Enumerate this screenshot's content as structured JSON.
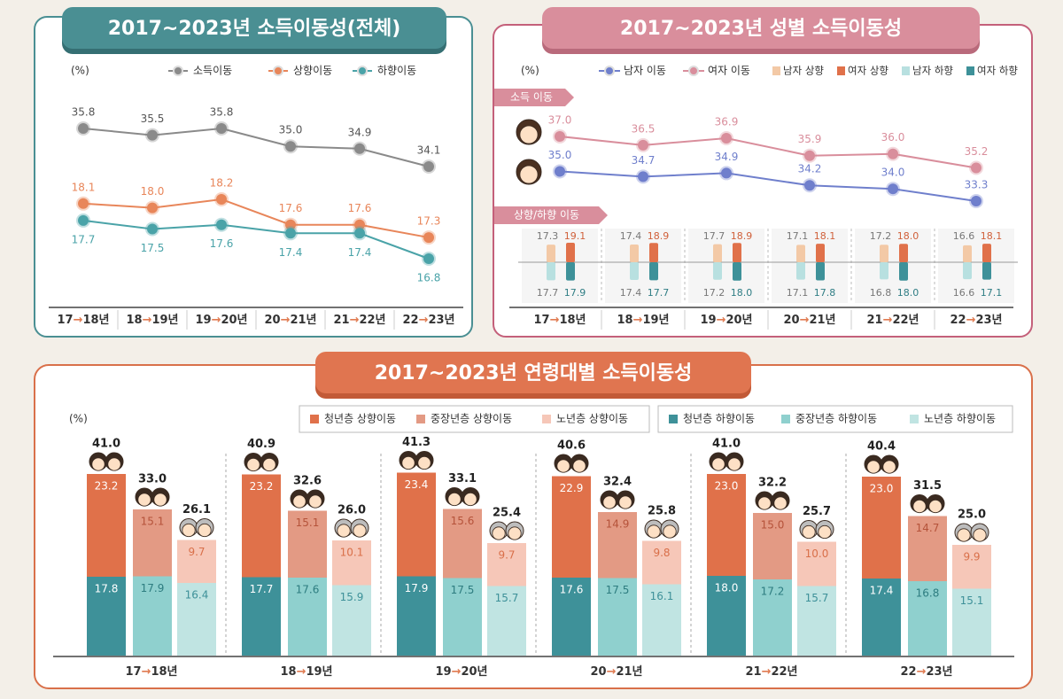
{
  "chart_data": [
    {
      "type": "line",
      "title": "2017~2023년 소득이동성(전체)",
      "unit": "(%)",
      "categories": [
        "17→18년",
        "18→19년",
        "19→20년",
        "20→21년",
        "21→22년",
        "22→23년"
      ],
      "series": [
        {
          "name": "소득이동",
          "color": "#8a8a8a",
          "values": [
            35.8,
            35.5,
            35.8,
            35.0,
            34.9,
            34.1
          ],
          "value_labels": [
            "35.8",
            "35.5",
            "35.8",
            "35.0",
            "34.9",
            "34.1"
          ]
        },
        {
          "name": "상향이동",
          "color": "#e8865a",
          "values": [
            18.1,
            18.0,
            18.2,
            17.6,
            17.6,
            17.3
          ],
          "value_labels": [
            "18.1",
            "18.0",
            "18.2",
            "17.6",
            "17.6",
            "17.3"
          ]
        },
        {
          "name": "하향이동",
          "color": "#4aa3a8",
          "values": [
            17.7,
            17.5,
            17.6,
            17.4,
            17.4,
            16.8
          ],
          "value_labels": [
            "17.7",
            "17.5",
            "17.6",
            "17.4",
            "17.4",
            "16.8"
          ]
        }
      ]
    },
    {
      "type": "combo",
      "title": "2017~2023년 성별 소득이동성",
      "unit": "(%)",
      "section_labels": [
        "소득 이동",
        "상향/하향 이동"
      ],
      "categories": [
        "17→18년",
        "18→19년",
        "19→20년",
        "20→21년",
        "21→22년",
        "22→23년"
      ],
      "series": [
        {
          "name": "남자 이동",
          "kind": "line",
          "color": "#6f7fcc",
          "values": [
            35.0,
            34.7,
            34.9,
            34.2,
            34.0,
            33.3
          ],
          "value_labels": [
            "35.0",
            "34.7",
            "34.9",
            "34.2",
            "34.0",
            "33.3"
          ]
        },
        {
          "name": "여자 이동",
          "kind": "line",
          "color": "#d98e9c",
          "values": [
            37.0,
            36.5,
            36.9,
            35.9,
            36.0,
            35.2
          ],
          "value_labels": [
            "37.0",
            "36.5",
            "36.9",
            "35.9",
            "36.0",
            "35.2"
          ]
        },
        {
          "name": "남자 상향",
          "kind": "up",
          "color": "#f3c9a6",
          "values": [
            17.3,
            17.4,
            17.7,
            17.1,
            17.2,
            16.6
          ],
          "value_labels": [
            "17.3",
            "17.4",
            "17.7",
            "17.1",
            "17.2",
            "16.6"
          ]
        },
        {
          "name": "여자 상향",
          "kind": "up",
          "color": "#e0714a",
          "values": [
            19.1,
            18.9,
            18.9,
            18.1,
            18.0,
            18.1
          ],
          "value_labels": [
            "19.1",
            "18.9",
            "18.9",
            "18.1",
            "18.0",
            "18.1"
          ]
        },
        {
          "name": "남자 하향",
          "kind": "down",
          "color": "#b8e0e0",
          "values": [
            17.7,
            17.4,
            17.2,
            17.1,
            16.8,
            16.6
          ],
          "value_labels": [
            "17.7",
            "17.4",
            "17.2",
            "17.1",
            "16.8",
            "16.6"
          ]
        },
        {
          "name": "여자 하향",
          "kind": "down",
          "color": "#3e9199",
          "values": [
            17.9,
            17.7,
            18.0,
            17.8,
            18.0,
            17.1
          ],
          "value_labels": [
            "17.9",
            "17.7",
            "18.0",
            "17.8",
            "18.0",
            "17.1"
          ]
        }
      ]
    },
    {
      "type": "stacked",
      "title": "2017~2023년 연령대별 소득이동성",
      "unit": "(%)",
      "categories": [
        "17→18년",
        "18→19년",
        "19→20년",
        "20→21년",
        "21→22년",
        "22→23년"
      ],
      "series": [
        {
          "name": "청년층 상향이동",
          "direction": "up",
          "color": "#e0714a",
          "values": [
            23.2,
            23.2,
            23.4,
            22.9,
            23.0,
            23.0
          ],
          "value_labels": [
            "23.2",
            "23.2",
            "23.4",
            "22.9",
            "23.0",
            "23.0"
          ]
        },
        {
          "name": "중장년층 상향이동",
          "direction": "up",
          "color": "#e39a84",
          "values": [
            15.1,
            15.1,
            15.6,
            14.9,
            15.0,
            14.7
          ],
          "value_labels": [
            "15.1",
            "15.1",
            "15.6",
            "14.9",
            "15.0",
            "14.7"
          ]
        },
        {
          "name": "노년층 상향이동",
          "direction": "up",
          "color": "#f6c7b8",
          "values": [
            9.7,
            10.1,
            9.7,
            9.8,
            10.0,
            9.9
          ],
          "value_labels": [
            "9.7",
            "10.1",
            "9.7",
            "9.8",
            "10.0",
            "9.9"
          ]
        },
        {
          "name": "청년층 하향이동",
          "direction": "down",
          "color": "#3e9199",
          "values": [
            17.8,
            17.7,
            17.9,
            17.6,
            18.0,
            17.4
          ],
          "value_labels": [
            "17.8",
            "17.7",
            "17.9",
            "17.6",
            "18.0",
            "17.4"
          ]
        },
        {
          "name": "중장년층 하향이동",
          "direction": "down",
          "color": "#8fd0ce",
          "values": [
            17.9,
            17.6,
            17.5,
            17.5,
            17.2,
            16.8
          ],
          "value_labels": [
            "17.9",
            "17.6",
            "17.5",
            "17.5",
            "17.2",
            "16.8"
          ]
        },
        {
          "name": "노년층 하향이동",
          "direction": "down",
          "color": "#c0e4e2",
          "values": [
            16.4,
            15.9,
            15.7,
            16.1,
            15.7,
            15.1
          ],
          "value_labels": [
            "16.4",
            "15.9",
            "15.7",
            "16.1",
            "15.7",
            "15.1"
          ]
        }
      ],
      "totals": [
        [
          41.0,
          40.9,
          41.3,
          40.6,
          41.0,
          40.4
        ],
        [
          33.0,
          32.6,
          33.1,
          32.4,
          32.2,
          31.5
        ],
        [
          26.1,
          26.0,
          25.4,
          25.8,
          25.7,
          25.0
        ]
      ],
      "total_labels": [
        [
          "41.0",
          "40.9",
          "41.3",
          "40.6",
          "41.0",
          "40.4"
        ],
        [
          "33.0",
          "32.6",
          "33.1",
          "32.4",
          "32.2",
          "31.5"
        ],
        [
          "26.1",
          "26.0",
          "25.4",
          "25.8",
          "25.7",
          "25.0"
        ]
      ]
    }
  ]
}
